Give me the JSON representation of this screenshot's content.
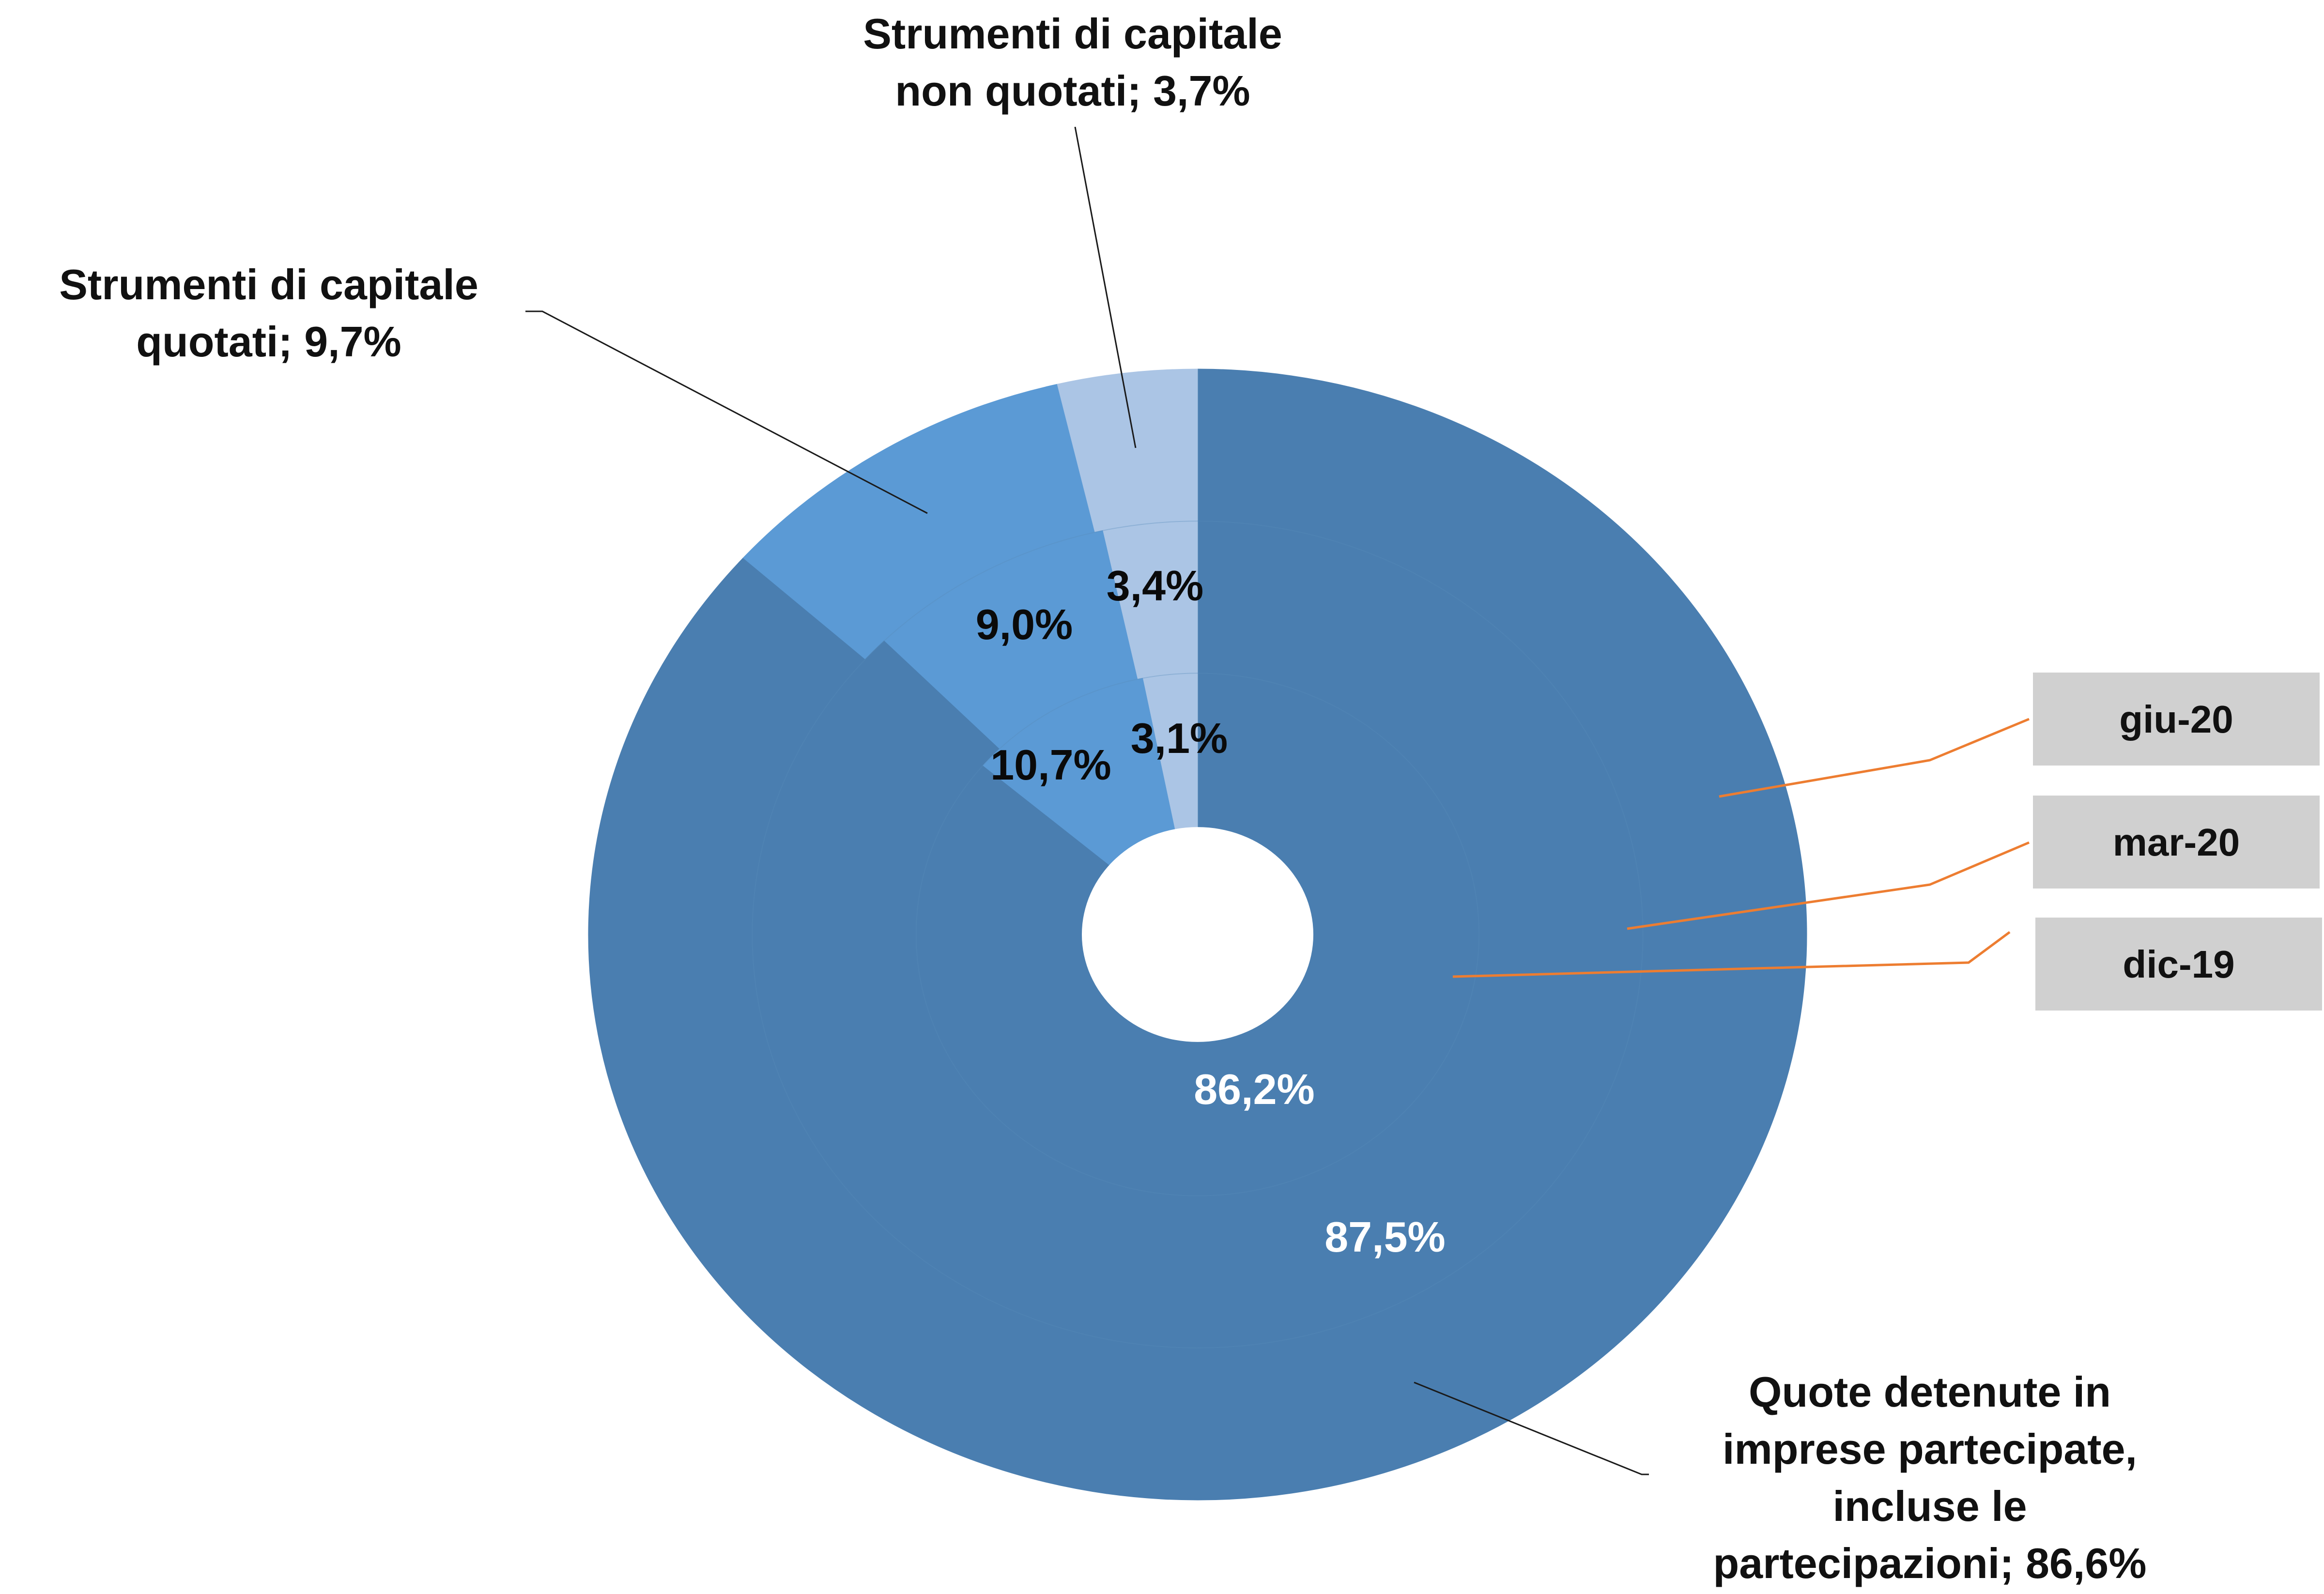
{
  "chart_data": {
    "type": "doughnut",
    "categories": [
      "Quote detenute in imprese partecipate, incluse le partecipazioni",
      "Strumenti di capitale quotati",
      "Strumenti di capitale non quotati"
    ],
    "series": [
      {
        "name": "giu-20",
        "values": [
          86.6,
          9.7,
          3.7
        ],
        "value_labels": [
          "",
          "",
          ""
        ]
      },
      {
        "name": "mar-20",
        "values": [
          87.5,
          9.0,
          3.4
        ],
        "value_labels": [
          "87,5%",
          "9,0%",
          "3,4%"
        ]
      },
      {
        "name": "dic-19",
        "values": [
          86.2,
          10.7,
          3.1
        ],
        "value_labels": [
          "86,2%",
          "10,7%",
          "3,1%"
        ]
      }
    ],
    "category_labels": [
      [
        "Quote detenute in",
        "imprese partecipate,",
        "incluse le",
        "partecipazioni; 86,6%"
      ],
      [
        "Strumenti di capitale",
        "quotati; 9,7%"
      ],
      [
        "Strumenti di capitale",
        "non quotati; 3,7%"
      ]
    ],
    "ring_order": "giu-20 outer, mar-20 middle, dic-19 inner",
    "colors": [
      "#4a7eb0",
      "#5b9ad5",
      "#abc5e5"
    ],
    "label_box_color": "#d0d0d0",
    "leader_line_color": "#ed7d31",
    "label_line_color": "#1a1a1a",
    "title": "",
    "legend": "none"
  }
}
